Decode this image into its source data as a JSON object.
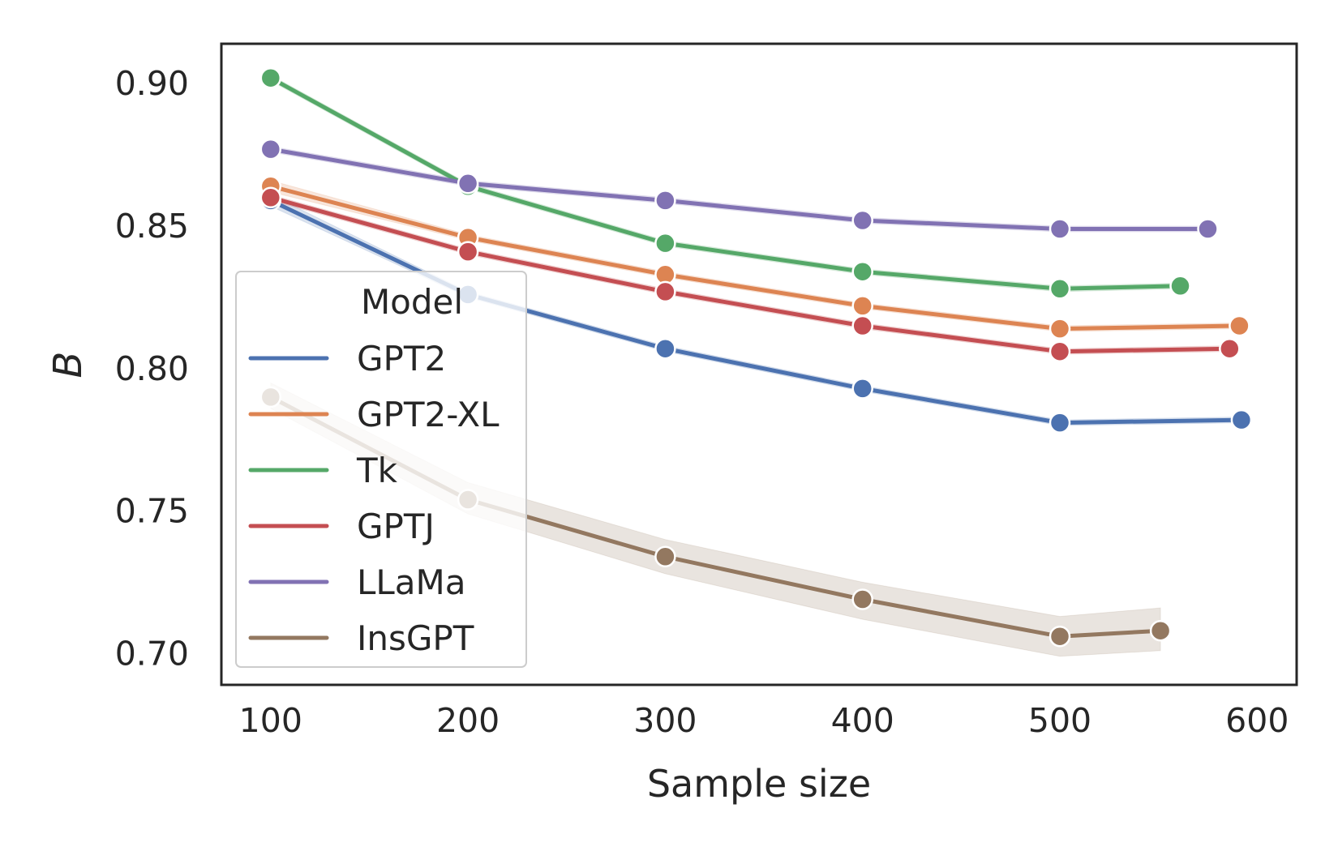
{
  "chart_data": {
    "type": "line",
    "xlabel": "Sample size",
    "ylabel": "B",
    "xlim": [
      75,
      620
    ],
    "ylim": [
      0.689,
      0.914
    ],
    "xticks": [
      100,
      200,
      300,
      400,
      500,
      600
    ],
    "xtick_labels": [
      "100",
      "200",
      "300",
      "400",
      "500",
      "600"
    ],
    "yticks": [
      0.7,
      0.75,
      0.8,
      0.85,
      0.9
    ],
    "ytick_labels": [
      "0.70",
      "0.75",
      "0.80",
      "0.85",
      "0.90"
    ],
    "grid": false,
    "legend": {
      "title": "Model",
      "position": "center-left"
    },
    "series": [
      {
        "name": "GPT2",
        "color": "#4c72b0",
        "x": [
          100,
          200,
          300,
          400,
          500,
          592
        ],
        "y": [
          0.859,
          0.826,
          0.807,
          0.793,
          0.781,
          0.782
        ],
        "band": [
          [
            0.857,
            0.861
          ],
          [
            0.825,
            0.827
          ],
          [
            0.806,
            0.808
          ],
          [
            0.792,
            0.794
          ],
          [
            0.78,
            0.782
          ],
          [
            0.781,
            0.783
          ]
        ]
      },
      {
        "name": "GPT2-XL",
        "color": "#dd8452",
        "x": [
          100,
          200,
          300,
          400,
          500,
          591
        ],
        "y": [
          0.864,
          0.846,
          0.833,
          0.822,
          0.814,
          0.815
        ],
        "band": [
          [
            0.862,
            0.866
          ],
          [
            0.845,
            0.847
          ],
          [
            0.832,
            0.834
          ],
          [
            0.821,
            0.823
          ],
          [
            0.813,
            0.815
          ],
          [
            0.814,
            0.816
          ]
        ]
      },
      {
        "name": "Tk",
        "color": "#55a868",
        "x": [
          100,
          200,
          300,
          400,
          500,
          561
        ],
        "y": [
          0.902,
          0.864,
          0.844,
          0.834,
          0.828,
          0.829
        ],
        "band": [
          [
            0.901,
            0.903
          ],
          [
            0.863,
            0.865
          ],
          [
            0.843,
            0.845
          ],
          [
            0.833,
            0.835
          ],
          [
            0.827,
            0.829
          ],
          [
            0.828,
            0.83
          ]
        ]
      },
      {
        "name": "GPTJ",
        "color": "#c44e52",
        "x": [
          100,
          200,
          300,
          400,
          500,
          586
        ],
        "y": [
          0.86,
          0.841,
          0.827,
          0.815,
          0.806,
          0.807
        ],
        "band": [
          [
            0.859,
            0.861
          ],
          [
            0.84,
            0.842
          ],
          [
            0.826,
            0.828
          ],
          [
            0.814,
            0.816
          ],
          [
            0.805,
            0.807
          ],
          [
            0.806,
            0.808
          ]
        ]
      },
      {
        "name": "LLaMa",
        "color": "#8172b3",
        "x": [
          100,
          200,
          300,
          400,
          500,
          575
        ],
        "y": [
          0.877,
          0.865,
          0.859,
          0.852,
          0.849,
          0.849
        ],
        "band": [
          [
            0.876,
            0.878
          ],
          [
            0.864,
            0.866
          ],
          [
            0.858,
            0.86
          ],
          [
            0.851,
            0.853
          ],
          [
            0.848,
            0.85
          ],
          [
            0.848,
            0.85
          ]
        ]
      },
      {
        "name": "InsGPT",
        "color": "#937860",
        "x": [
          100,
          200,
          300,
          400,
          500,
          551
        ],
        "y": [
          0.79,
          0.754,
          0.734,
          0.719,
          0.706,
          0.708
        ],
        "band": [
          [
            0.786,
            0.795
          ],
          [
            0.749,
            0.76
          ],
          [
            0.728,
            0.74
          ],
          [
            0.712,
            0.725
          ],
          [
            0.699,
            0.713
          ],
          [
            0.701,
            0.716
          ]
        ]
      }
    ]
  }
}
